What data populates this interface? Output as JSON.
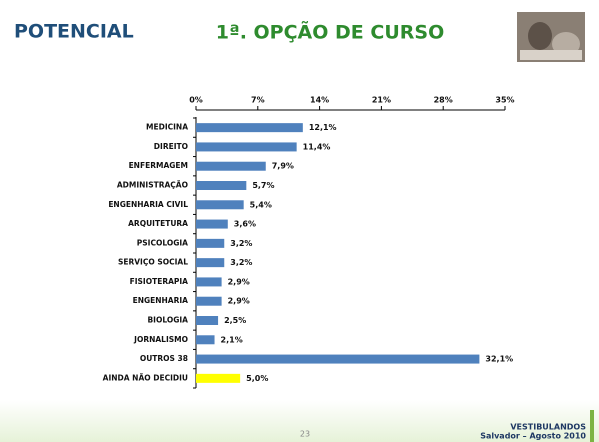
{
  "header": {
    "logo": "POTENCIAL",
    "title": "1ª. OPÇÃO DE CURSO"
  },
  "chart_data": {
    "type": "bar",
    "orientation": "horizontal",
    "categories": [
      "MEDICINA",
      "DIREITO",
      "ENFERMAGEM",
      "ADMINISTRAÇÃO",
      "ENGENHARIA CIVIL",
      "ARQUITETURA",
      "PSICOLOGIA",
      "SERVIÇO SOCIAL",
      "FISIOTERAPIA",
      "ENGENHARIA",
      "BIOLOGIA",
      "JORNALISMO",
      "OUTROS 38",
      "AINDA NÃO DECIDIU"
    ],
    "values": [
      12.1,
      11.4,
      7.9,
      5.7,
      5.4,
      3.6,
      3.2,
      3.2,
      2.9,
      2.9,
      2.5,
      2.1,
      32.1,
      5.0
    ],
    "value_labels": [
      "12,1%",
      "11,4%",
      "7,9%",
      "5,7%",
      "5,4%",
      "3,6%",
      "3,2%",
      "3,2%",
      "2,9%",
      "2,9%",
      "2,5%",
      "2,1%",
      "32,1%",
      "5,0%"
    ],
    "colors": [
      "#4f81bd",
      "#4f81bd",
      "#4f81bd",
      "#4f81bd",
      "#4f81bd",
      "#4f81bd",
      "#4f81bd",
      "#4f81bd",
      "#4f81bd",
      "#4f81bd",
      "#4f81bd",
      "#4f81bd",
      "#4f81bd",
      "#ffff00"
    ],
    "xlim": [
      0,
      35
    ],
    "xticks": [
      {
        "value": 0,
        "label": "0%"
      },
      {
        "value": 7,
        "label": "7%"
      },
      {
        "value": 14,
        "label": "14%"
      },
      {
        "value": 21,
        "label": "21%"
      },
      {
        "value": 28,
        "label": "28%"
      },
      {
        "value": 35,
        "label": "35%"
      }
    ]
  },
  "footer": {
    "page": "23",
    "line1": "VESTIBULANDOS",
    "line2": "Salvador – Agosto 2010"
  }
}
